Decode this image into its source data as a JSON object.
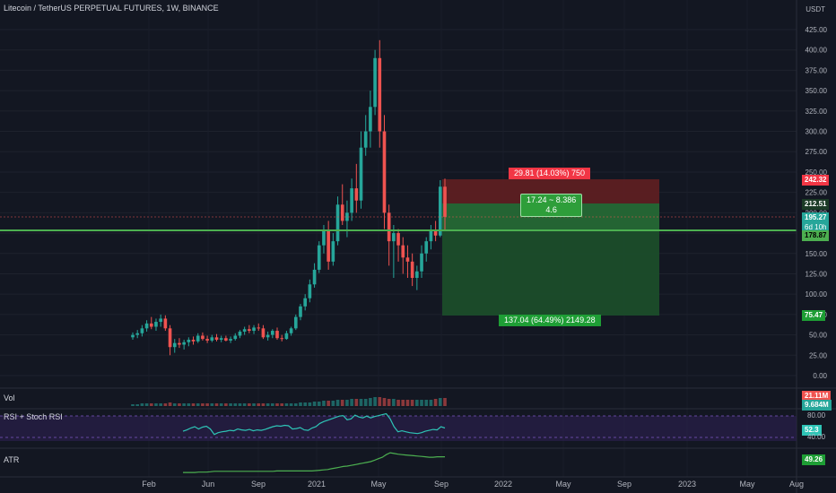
{
  "header": {
    "symbol_title": "Litecoin / TetherUS PERPETUAL FUTURES, 1W, BINANCE",
    "currency": "USDT"
  },
  "panes": {
    "volume_label": "Vol",
    "rsi_label": "RSI + Stoch RSI",
    "atr_label": "ATR"
  },
  "price_axis": {
    "ticks": [
      "425.00",
      "400.00",
      "375.00",
      "350.00",
      "325.00",
      "300.00",
      "275.00",
      "250.00",
      "225.00",
      "200.00",
      "175.00",
      "150.00",
      "125.00",
      "100.00",
      "75.00",
      "50.00",
      "25.00",
      "0.00"
    ]
  },
  "time_axis": {
    "ticks": [
      "Feb",
      "Jun",
      "Sep",
      "2021",
      "May",
      "Sep",
      "2022",
      "May",
      "Sep",
      "2023",
      "May",
      "Aug"
    ]
  },
  "price_tags": {
    "stop": "242.32",
    "target_mid": "212.51",
    "last": "195.27",
    "countdown": "6d 10h",
    "entry": "178.87",
    "take_profit": "75.47"
  },
  "position_boxes": {
    "risk_text": "29.81 (14.03%) 750",
    "ratio_line1": "17.24 ~ 8.386",
    "ratio_line2": "4.6",
    "reward_text": "137.04 (64.49%) 2149.28"
  },
  "indicator_tags": {
    "vol_upper": "21.11M",
    "vol_lower": "9.684M",
    "rsi_80": "80.00",
    "rsi_value": "52.3",
    "rsi_40": "40.00",
    "atr_value": "49.26"
  },
  "colors": {
    "background": "#131722",
    "up": "#26a69a",
    "down": "#ef5350",
    "entry_line": "#4caf50",
    "risk_zone": "#5d1f22",
    "reward_zone": "#1b4d2a",
    "rsi_line": "#2ec4b6",
    "atr_line": "#4caf50"
  },
  "chart_data": {
    "type": "candlestick",
    "ylim": [
      0,
      437
    ],
    "candles": [
      [
        47,
        53,
        44,
        50
      ],
      [
        50,
        56,
        46,
        52
      ],
      [
        52,
        62,
        48,
        58
      ],
      [
        58,
        68,
        54,
        64
      ],
      [
        64,
        72,
        57,
        60
      ],
      [
        60,
        70,
        55,
        66
      ],
      [
        66,
        75,
        60,
        70
      ],
      [
        70,
        74,
        55,
        58
      ],
      [
        58,
        62,
        25,
        35
      ],
      [
        35,
        45,
        28,
        40
      ],
      [
        40,
        46,
        34,
        38
      ],
      [
        38,
        44,
        32,
        41
      ],
      [
        41,
        47,
        36,
        44
      ],
      [
        44,
        48,
        38,
        42
      ],
      [
        42,
        52,
        40,
        49
      ],
      [
        49,
        53,
        43,
        45
      ],
      [
        45,
        49,
        40,
        43
      ],
      [
        43,
        50,
        41,
        47
      ],
      [
        47,
        51,
        42,
        44
      ],
      [
        44,
        49,
        41,
        46
      ],
      [
        46,
        49,
        42,
        43
      ],
      [
        43,
        48,
        40,
        45
      ],
      [
        45,
        52,
        43,
        49
      ],
      [
        49,
        56,
        46,
        54
      ],
      [
        54,
        60,
        50,
        57
      ],
      [
        57,
        62,
        52,
        55
      ],
      [
        55,
        62,
        51,
        59
      ],
      [
        59,
        64,
        55,
        58
      ],
      [
        58,
        62,
        45,
        47
      ],
      [
        47,
        54,
        43,
        50
      ],
      [
        50,
        57,
        46,
        55
      ],
      [
        55,
        59,
        44,
        46
      ],
      [
        46,
        50,
        42,
        45
      ],
      [
        45,
        55,
        44,
        52
      ],
      [
        52,
        60,
        49,
        58
      ],
      [
        58,
        75,
        56,
        72
      ],
      [
        72,
        88,
        68,
        85
      ],
      [
        85,
        100,
        80,
        95
      ],
      [
        95,
        118,
        90,
        112
      ],
      [
        112,
        138,
        108,
        130
      ],
      [
        130,
        165,
        126,
        160
      ],
      [
        160,
        185,
        150,
        178
      ],
      [
        178,
        190,
        130,
        140
      ],
      [
        140,
        175,
        135,
        165
      ],
      [
        165,
        220,
        160,
        210
      ],
      [
        210,
        235,
        185,
        190
      ],
      [
        190,
        215,
        170,
        200
      ],
      [
        200,
        242,
        190,
        230
      ],
      [
        230,
        260,
        200,
        215
      ],
      [
        215,
        300,
        205,
        280
      ],
      [
        280,
        320,
        270,
        300
      ],
      [
        300,
        350,
        280,
        330
      ],
      [
        330,
        400,
        320,
        390
      ],
      [
        390,
        412,
        280,
        300
      ],
      [
        300,
        320,
        180,
        200
      ],
      [
        200,
        210,
        135,
        165
      ],
      [
        165,
        185,
        120,
        175
      ],
      [
        175,
        180,
        140,
        160
      ],
      [
        160,
        170,
        125,
        145
      ],
      [
        145,
        160,
        120,
        140
      ],
      [
        140,
        150,
        110,
        120
      ],
      [
        120,
        135,
        105,
        128
      ],
      [
        128,
        160,
        120,
        150
      ],
      [
        150,
        170,
        140,
        165
      ],
      [
        165,
        185,
        155,
        178
      ],
      [
        178,
        190,
        165,
        172
      ],
      [
        172,
        240,
        170,
        232
      ],
      [
        232,
        242,
        178,
        195
      ]
    ],
    "volume_profile": [
      2,
      2,
      3,
      3,
      3,
      3,
      3,
      3,
      4,
      3,
      3,
      3,
      3,
      3,
      3,
      3,
      3,
      3,
      3,
      3,
      3,
      3,
      3,
      3,
      3,
      3,
      3,
      3,
      3,
      3,
      3,
      3,
      3,
      3,
      3,
      3,
      4,
      4,
      4,
      5,
      5,
      6,
      6,
      6,
      7,
      7,
      7,
      8,
      8,
      8,
      8,
      9,
      10,
      10,
      9,
      8,
      8,
      7,
      7,
      7,
      7,
      7,
      7,
      7,
      7,
      8,
      9,
      9
    ],
    "rsi": [
      45,
      48,
      52,
      55,
      50,
      54,
      56,
      50,
      38,
      42,
      44,
      45,
      47,
      46,
      50,
      48,
      47,
      49,
      46,
      48,
      47,
      49,
      52,
      55,
      57,
      56,
      58,
      57,
      50,
      51,
      53,
      48,
      47,
      52,
      55,
      62,
      66,
      69,
      72,
      75,
      78,
      79,
      70,
      72,
      80,
      76,
      74,
      78,
      74,
      77,
      79,
      81,
      83,
      72,
      55,
      44,
      46,
      44,
      42,
      41,
      40,
      42,
      45,
      47,
      49,
      48,
      55,
      52
    ],
    "atr": [
      7,
      7,
      7,
      7,
      8,
      8,
      8,
      9,
      10,
      10,
      10,
      10,
      10,
      10,
      10,
      10,
      10,
      10,
      10,
      10,
      10,
      10,
      10,
      10,
      11,
      11,
      11,
      11,
      11,
      11,
      11,
      11,
      11,
      11,
      12,
      13,
      14,
      15,
      17,
      19,
      21,
      23,
      24,
      26,
      28,
      30,
      32,
      34,
      36,
      40,
      44,
      48,
      55,
      60,
      58,
      56,
      55,
      54,
      53,
      52,
      51,
      50,
      49,
      48,
      48,
      49,
      49,
      49
    ]
  }
}
